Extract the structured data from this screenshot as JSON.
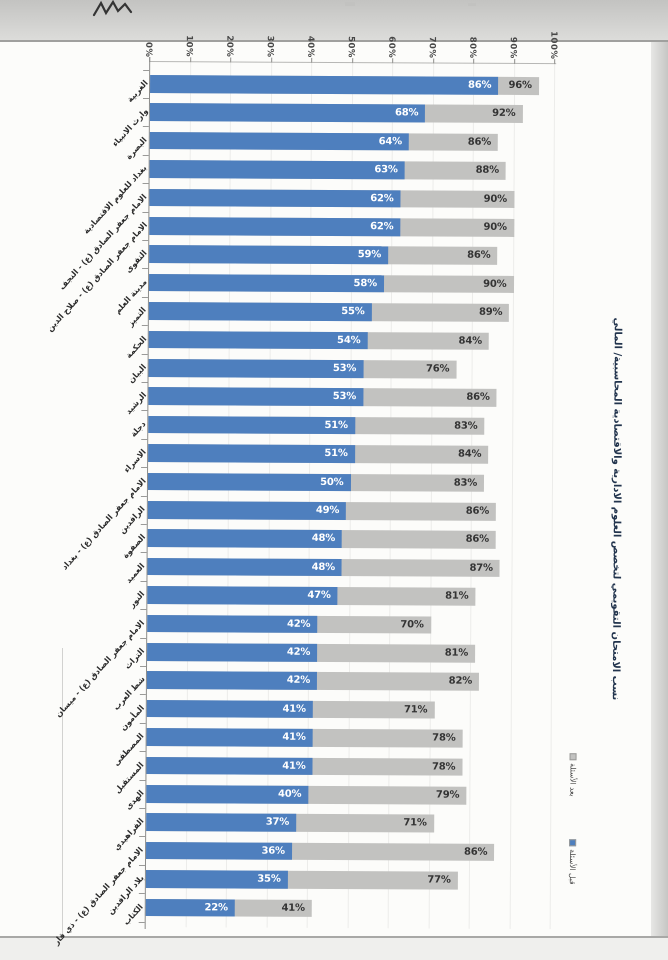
{
  "chart_data": {
    "type": "bar",
    "orientation": "horizontal-stacked-overlay",
    "title": "نسب الامتحان التقويمي لتخصص العلوم الادارية والاقتصادية المحاسبية/ المالي",
    "xlabel": "",
    "ylabel": "",
    "xlim": [
      0,
      100
    ],
    "grid": true,
    "legend_position": "right-bottom-rotated",
    "axis_ticks": [
      "0%",
      "10%",
      "20%",
      "30%",
      "40%",
      "50%",
      "60%",
      "70%",
      "80%",
      "90%",
      "100%"
    ],
    "legend": [
      {
        "label": "بعد الأسئلة",
        "color": "#c2c2c0"
      },
      {
        "label": "قبل الأسئلة",
        "color": "#4e7fbe"
      }
    ],
    "colors": {
      "before": "#4e7fbe",
      "after": "#c2c2c0",
      "before_value_text": "#ffffff",
      "after_value_text": "#343434",
      "title_text": "#22344d"
    },
    "categories": [
      "الغربية",
      "وارث الانبياء",
      "البصرة",
      "بغداد للعلوم الاقتصادية",
      "الامام جعفر الصادق (ع) - النجف",
      "الامام جعفر الصادق (ع) - صلاح الدين",
      "التقوى",
      "مدينة العلم",
      "التميز",
      "الحكمة",
      "البيان",
      "الرشيد",
      "دجلة",
      "الاسراء",
      "الامام جعفر الصادق (ع) - بغداد",
      "الرافدين",
      "الصفوة",
      "العميد",
      "النور",
      "الامام جعفر الصادق (ع) - ميسان",
      "التراث",
      "شط العرب",
      "المأمون",
      "المصطفى",
      "المستقبل",
      "الهدى",
      "الفراهيدي",
      "الامام جعفر الصادق (ع) - ذي قار",
      "بلاد الرافدين",
      "الكتاب"
    ],
    "series": [
      {
        "name": "قبل الأسئلة",
        "color": "#4e7fbe",
        "values": [
          86,
          68,
          64,
          63,
          62,
          62,
          59,
          58,
          55,
          54,
          53,
          53,
          51,
          51,
          50,
          49,
          48,
          48,
          47,
          42,
          42,
          42,
          41,
          41,
          41,
          40,
          37,
          36,
          35,
          22
        ]
      },
      {
        "name": "بعد الأسئلة",
        "color": "#c2c2c0",
        "values": [
          96,
          92,
          86,
          88,
          90,
          90,
          86,
          90,
          89,
          84,
          76,
          86,
          83,
          84,
          83,
          86,
          86,
          87,
          81,
          70,
          81,
          82,
          71,
          78,
          78,
          79,
          71,
          86,
          77,
          41
        ]
      }
    ]
  }
}
